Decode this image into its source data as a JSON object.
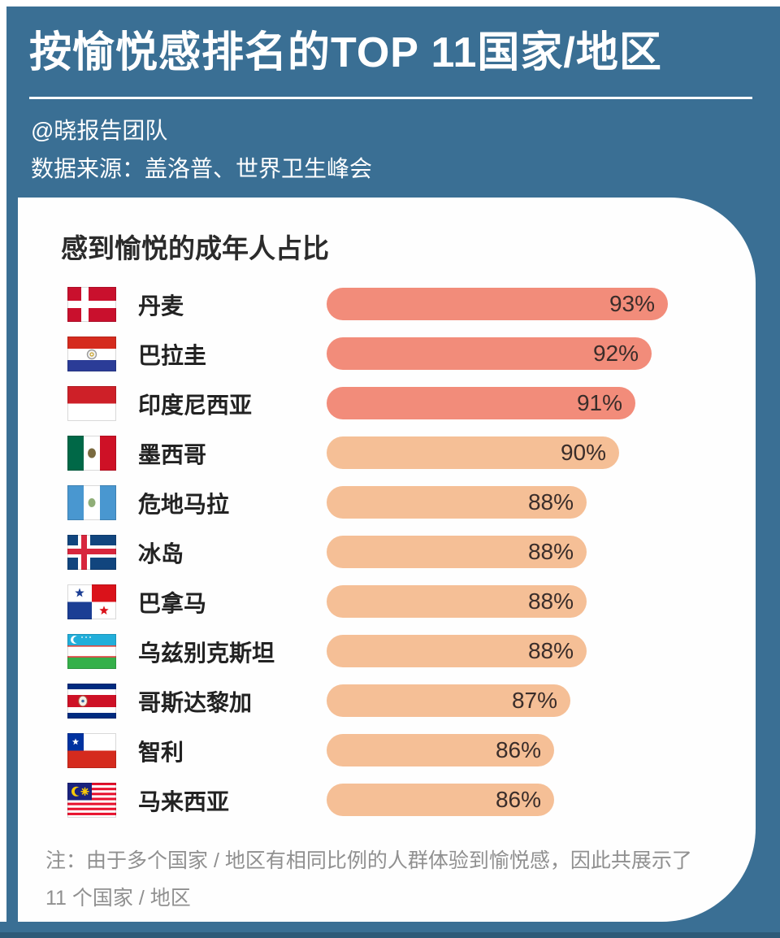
{
  "page": {
    "background_color": "#3a6f94",
    "card_color": "#fefefe",
    "bottom_edge_color": "#2e5a78"
  },
  "header": {
    "title": "按愉悦感排名的TOP 11国家/地区",
    "author": "@晓报告团队",
    "source": "数据来源：盖洛普、世界卫生峰会"
  },
  "chart_data": {
    "type": "bar",
    "orientation": "horizontal",
    "title": "感到愉悦的成年人占比",
    "unit": "%",
    "grid": false,
    "legend": false,
    "value_axis": {
      "visible": false,
      "implied_min": 72,
      "implied_max": 95
    },
    "categories": [
      "丹麦",
      "巴拉圭",
      "印度尼西亚",
      "墨西哥",
      "危地马拉",
      "冰岛",
      "巴拿马",
      "乌兹别克斯坦",
      "哥斯达黎加",
      "智利",
      "马来西亚"
    ],
    "values": [
      93,
      92,
      91,
      90,
      88,
      88,
      88,
      88,
      87,
      86,
      86
    ],
    "value_labels": [
      "93%",
      "92%",
      "91%",
      "90%",
      "88%",
      "88%",
      "88%",
      "88%",
      "87%",
      "86%",
      "86%"
    ],
    "flags": [
      "denmark",
      "paraguay",
      "indonesia",
      "mexico",
      "guatemala",
      "iceland",
      "panama",
      "uzbekistan",
      "costa-rica",
      "chile",
      "malaysia"
    ],
    "bar_colors": [
      "#f28c7a",
      "#f28c7a",
      "#f28c7a",
      "#f5bf96",
      "#f5bf96",
      "#f5bf96",
      "#f5bf96",
      "#f5bf96",
      "#f5bf96",
      "#f5bf96",
      "#f5bf96"
    ],
    "label_text_color": "#3a2d2a",
    "note_line1": "注：由于多个国家 / 地区有相同比例的人群体验到愉悦感，因此共展示了",
    "note_line2": "11 个国家 / 地区"
  }
}
